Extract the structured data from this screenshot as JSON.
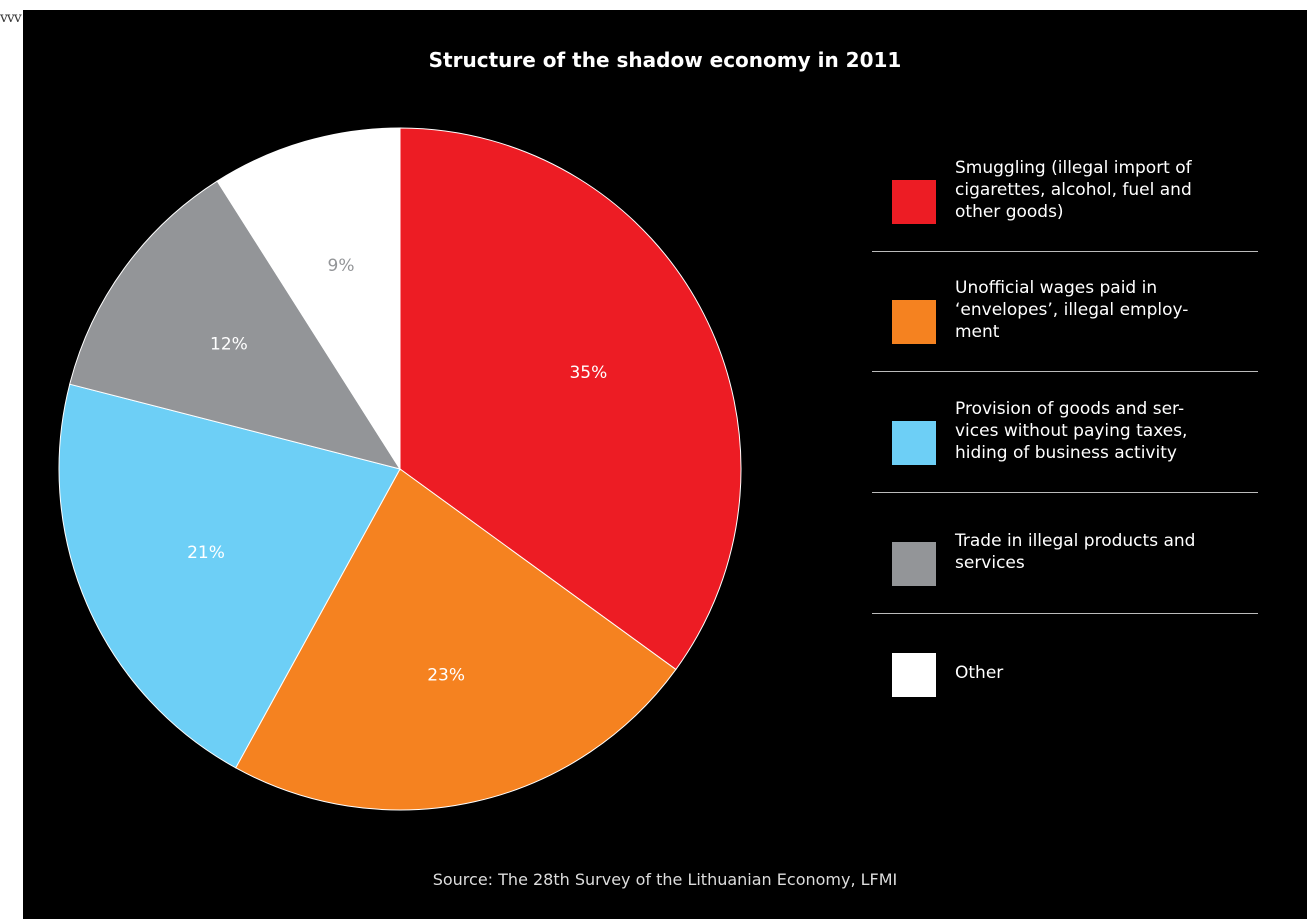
{
  "corner_mark": "vvv",
  "chart_data": {
    "type": "pie",
    "title": "Structure of the shadow economy in 2011",
    "source": "Source: The 28th Survey of the Lithuanian Economy, LFMI",
    "slices": [
      {
        "label": "Smuggling (illegal import of\ncigarettes, alcohol, fuel and\nother goods)",
        "value": 35,
        "value_label": "35%",
        "color": "#ed1c24"
      },
      {
        "label": "Unofficial wages paid in\n‘envelopes’, illegal employ-\nment",
        "value": 23,
        "value_label": "23%",
        "color": "#f58220"
      },
      {
        "label": "Provision of goods and ser-\nvices without paying taxes,\nhiding of business activity",
        "value": 21,
        "value_label": "21%",
        "color": "#6dcff6"
      },
      {
        "label": "Trade in illegal products and\nservices",
        "value": 12,
        "value_label": "12%",
        "color": "#939598"
      },
      {
        "label": "Other",
        "value": 9,
        "value_label": "9%",
        "color": "#ffffff"
      }
    ],
    "label_colors": [
      "#ffffff",
      "#ffffff",
      "#ffffff",
      "#ffffff",
      "#939598"
    ],
    "start": "12 o'clock",
    "direction": "clockwise",
    "legend_position": "right"
  }
}
